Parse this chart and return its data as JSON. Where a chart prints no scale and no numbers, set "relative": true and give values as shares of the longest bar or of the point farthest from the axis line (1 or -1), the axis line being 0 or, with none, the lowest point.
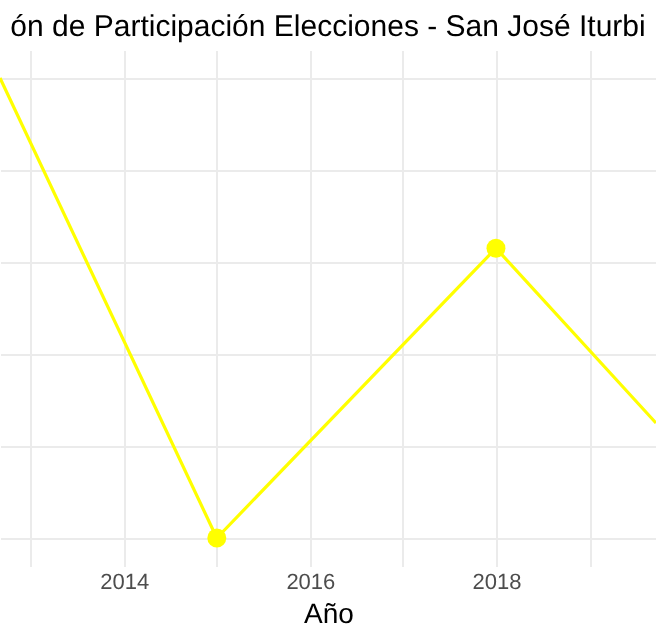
{
  "chart_data": {
    "type": "line",
    "title": "ón de Participación Elecciones - San José Iturbi",
    "xlabel": "Año",
    "x": [
      2012.67,
      2015,
      2018,
      2019.72
    ],
    "series": [
      {
        "color": "#ffff00",
        "values": [
          1,
          0,
          0.63,
          0.25
        ]
      }
    ],
    "relative": true,
    "xlim": [
      2012.67,
      2019.72
    ],
    "xticks": [
      {
        "value": 2013,
        "label": null
      },
      2014,
      {
        "value": 2015,
        "label": null
      },
      2016,
      {
        "value": 2017,
        "label": null
      },
      2018,
      {
        "value": 2019,
        "label": null
      }
    ],
    "grid": true,
    "marker": "circle"
  }
}
